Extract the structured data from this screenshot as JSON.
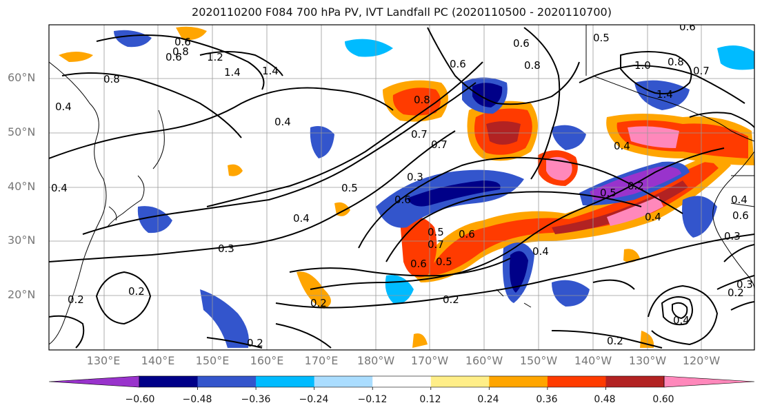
{
  "title": "2020110200 F084 700 hPa PV, IVT Landfall PC (2020110500 - 2020110700)",
  "lat_labels": [
    "60°N",
    "50°N",
    "40°N",
    "30°N",
    "20°N"
  ],
  "lon_labels": [
    "130°E",
    "140°E",
    "150°E",
    "160°E",
    "170°E",
    "180°W",
    "170°W",
    "160°W",
    "150°W",
    "140°W",
    "130°W",
    "120°W"
  ],
  "colorbar": {
    "colors": [
      "#9933cc",
      "#000088",
      "#3355cc",
      "#00bbff",
      "#aaddff",
      "#ffffff",
      "#ffee88",
      "#ffa500",
      "#ff3b00",
      "#b22222",
      "#ff88bb"
    ],
    "labels": [
      "−0.60",
      "−0.48",
      "−0.36",
      "−0.24",
      "−0.12",
      "0.12",
      "0.24",
      "0.36",
      "0.48",
      "0.60"
    ]
  },
  "contour_labels": [
    "0.6",
    "0.6",
    "0.8",
    "1.2",
    "1.4",
    "1.4",
    "0.8",
    "0.4",
    "0.4",
    "0.4",
    "0.5",
    "0.4",
    "0.3",
    "0.2",
    "0.2",
    "0.6",
    "0.8",
    "0.6",
    "0.7",
    "0.6",
    "0.8",
    "0.7",
    "0.3",
    "0.6",
    "0.5",
    "0.5",
    "0.6",
    "0.7",
    "0.4",
    "0.2",
    "0.4",
    "0.5",
    "0.2",
    "0.5",
    "0.4",
    "0.6",
    "1.0",
    "0.8",
    "1.4",
    "0.7",
    "0.6",
    "0.3",
    "0.4",
    "0.2",
    "0.3",
    "0.2",
    "0.4",
    "0.2",
    "0.2"
  ]
}
